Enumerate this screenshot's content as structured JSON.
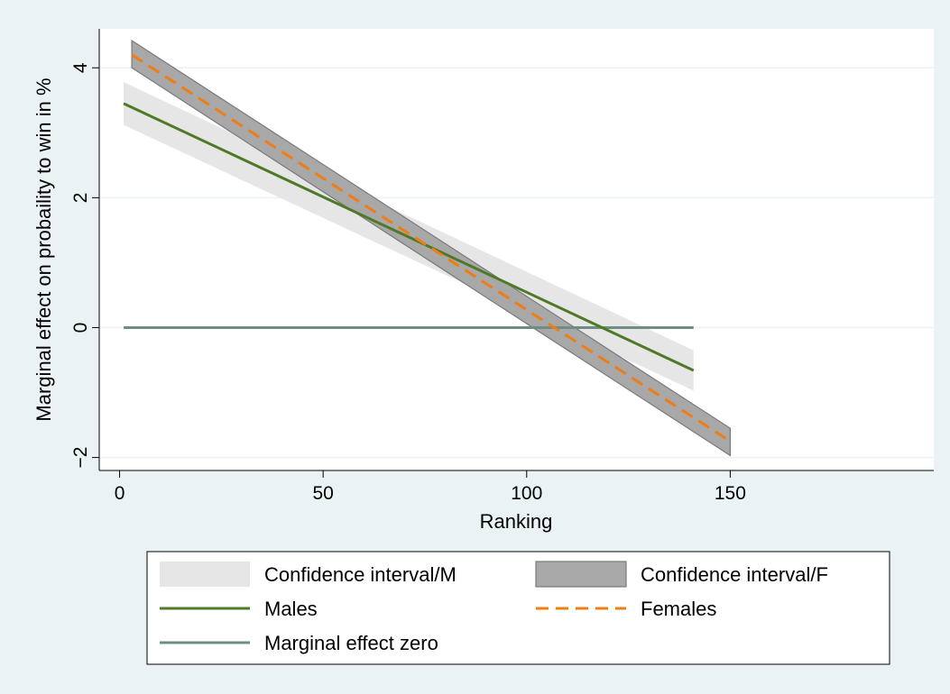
{
  "chart_data": {
    "type": "line",
    "xlabel": "Ranking",
    "ylabel": "Marginal effect on probaility to win in %",
    "xlim": [
      -5,
      200
    ],
    "ylim": [
      -2.2,
      4.6
    ],
    "x_ticks": [
      0,
      50,
      100,
      150
    ],
    "y_ticks": [
      -2,
      0,
      2,
      4
    ],
    "x_tick_labels": [
      "0",
      "50",
      "100",
      "150"
    ],
    "y_tick_labels": [
      "−2",
      "0",
      "2",
      "4"
    ],
    "grid": "horizontal",
    "colors": {
      "background": "#eaf2f3",
      "plot_background": "#ffffff",
      "grid": "#eaf2f3",
      "ci_males": "#e6e6e6",
      "ci_females": "#a8a8a8",
      "ci_females_edge": "#7a7a7a",
      "males": "#4e7a27",
      "females": "#ef7d14",
      "zero": "#6e8d86"
    },
    "series": [
      {
        "key": "ci_m",
        "name": "Confidence interval/M",
        "kind": "band",
        "x": [
          1,
          141
        ],
        "lower": [
          3.12,
          -0.97
        ],
        "upper": [
          3.78,
          -0.35
        ]
      },
      {
        "key": "ci_f",
        "name": "Confidence interval/F",
        "kind": "band",
        "x": [
          3,
          150
        ],
        "lower": [
          4.0,
          -1.97
        ],
        "upper": [
          4.42,
          -1.55
        ]
      },
      {
        "key": "zero",
        "name": "Marginal effect zero",
        "kind": "line",
        "x": [
          1,
          141
        ],
        "y": [
          0,
          0
        ]
      },
      {
        "key": "males",
        "name": "Males",
        "kind": "line",
        "x": [
          1,
          141
        ],
        "y": [
          3.45,
          -0.66
        ]
      },
      {
        "key": "females",
        "name": "Females",
        "kind": "dashed",
        "x": [
          3,
          150
        ],
        "y": [
          4.2,
          -1.75
        ]
      }
    ],
    "legend": {
      "position": "bottom",
      "columns": 2,
      "order": [
        "ci_m",
        "ci_f",
        "males",
        "females",
        "zero"
      ]
    }
  }
}
